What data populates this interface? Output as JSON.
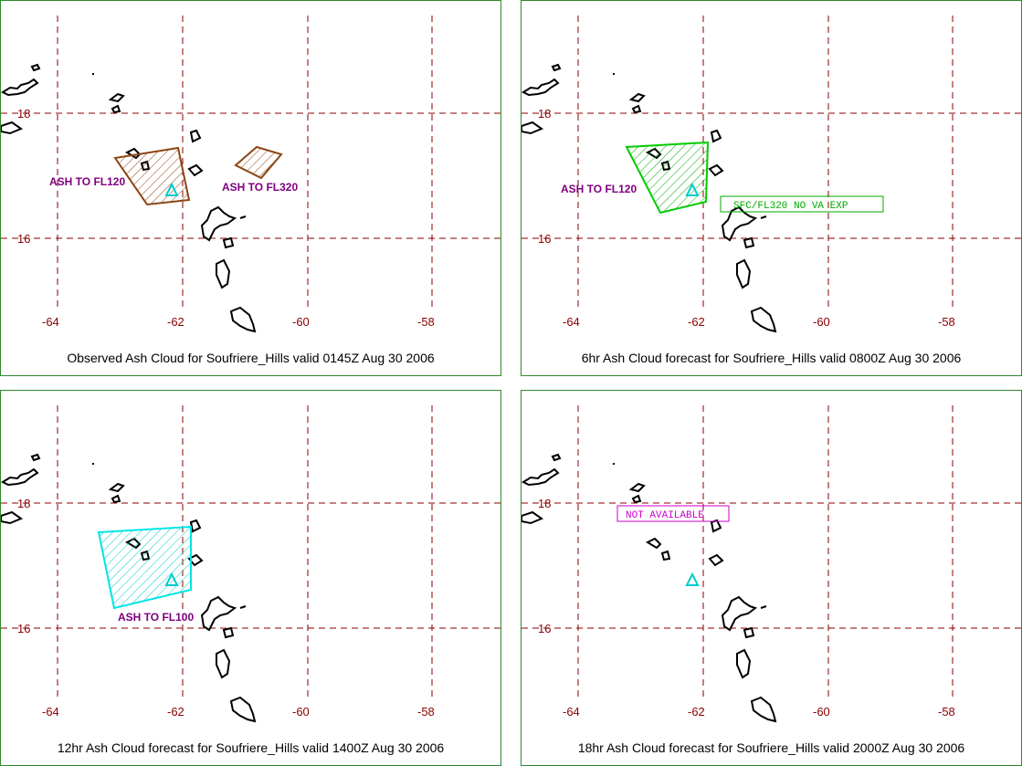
{
  "panels": [
    {
      "caption": "Observed Ash Cloud for Soufriere_Hills valid 0145Z Aug 30 2006",
      "labels": [
        "ASH TO FL120",
        "ASH TO FL320"
      ],
      "colors": {
        "polygon": "#8b4513",
        "label": "#800080"
      }
    },
    {
      "caption": "6hr Ash Cloud forecast for Soufriere_Hills valid 0800Z Aug 30 2006",
      "labels": [
        "ASH TO FL120"
      ],
      "box_text": "SFC/FL320 NO VA EXP",
      "colors": {
        "polygon": "#00cc00",
        "label": "#800080",
        "box": "#00aa00"
      }
    },
    {
      "caption": "12hr Ash Cloud forecast for Soufriere_Hills valid 1400Z Aug 30 2006",
      "labels": [
        "ASH TO FL100"
      ],
      "colors": {
        "polygon": "#00e5e5",
        "label": "#800080"
      }
    },
    {
      "caption": "18hr Ash Cloud forecast for Soufriere_Hills valid 2000Z Aug 30 2006",
      "box_text": "NOT AVAILABLE",
      "colors": {
        "box": "#cc00cc"
      }
    }
  ],
  "axes": {
    "lon_ticks": [
      "-64",
      "-62",
      "-60",
      "-58"
    ],
    "lat_ticks": [
      "18",
      "16"
    ],
    "grid_color": "#8b0000",
    "grid_style": "dashed"
  },
  "volcano_icon": "volcano-triangle-icon"
}
